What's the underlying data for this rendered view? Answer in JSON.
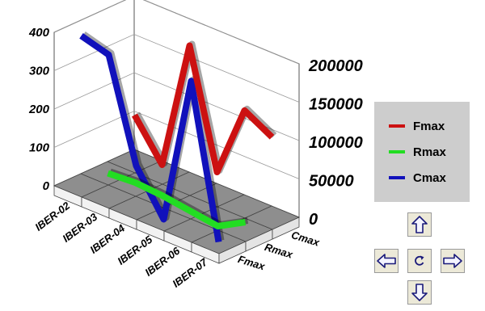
{
  "chart_data": {
    "type": "line",
    "view": "3d",
    "categories": [
      "IBER-02",
      "IBER-03",
      "IBER-04",
      "IBER-05",
      "IBER-06",
      "IBER-07"
    ],
    "series": [
      {
        "name": "Fmax",
        "color": "#cc1111",
        "axis": "left",
        "values": [
          120,
          20,
          360,
          60,
          250,
          210
        ]
      },
      {
        "name": "Rmax",
        "color": "#22dd22",
        "axis": "left",
        "values": [
          0,
          5,
          0,
          -10,
          -20,
          20
        ]
      },
      {
        "name": "Cmax",
        "color": "#1111bb",
        "axis": "right",
        "values": [
          195000,
          185000,
          55000,
          0,
          195000,
          0
        ]
      }
    ],
    "left_axis": {
      "ticks": [
        0,
        100,
        200,
        300,
        400
      ],
      "ylim": [
        0,
        400
      ]
    },
    "right_axis": {
      "ticks": [
        0,
        50000,
        100000,
        150000,
        200000
      ],
      "ylim": [
        0,
        200000
      ]
    },
    "depth_labels": [
      "Cmax",
      "Rmax",
      "Fmax"
    ],
    "legend": {
      "placement": "right"
    }
  },
  "nav": {
    "up_icon": "arrow-up-icon",
    "down_icon": "arrow-down-icon",
    "left_icon": "arrow-left-icon",
    "right_icon": "arrow-right-icon",
    "reset_icon": "reset-rotate-icon"
  }
}
